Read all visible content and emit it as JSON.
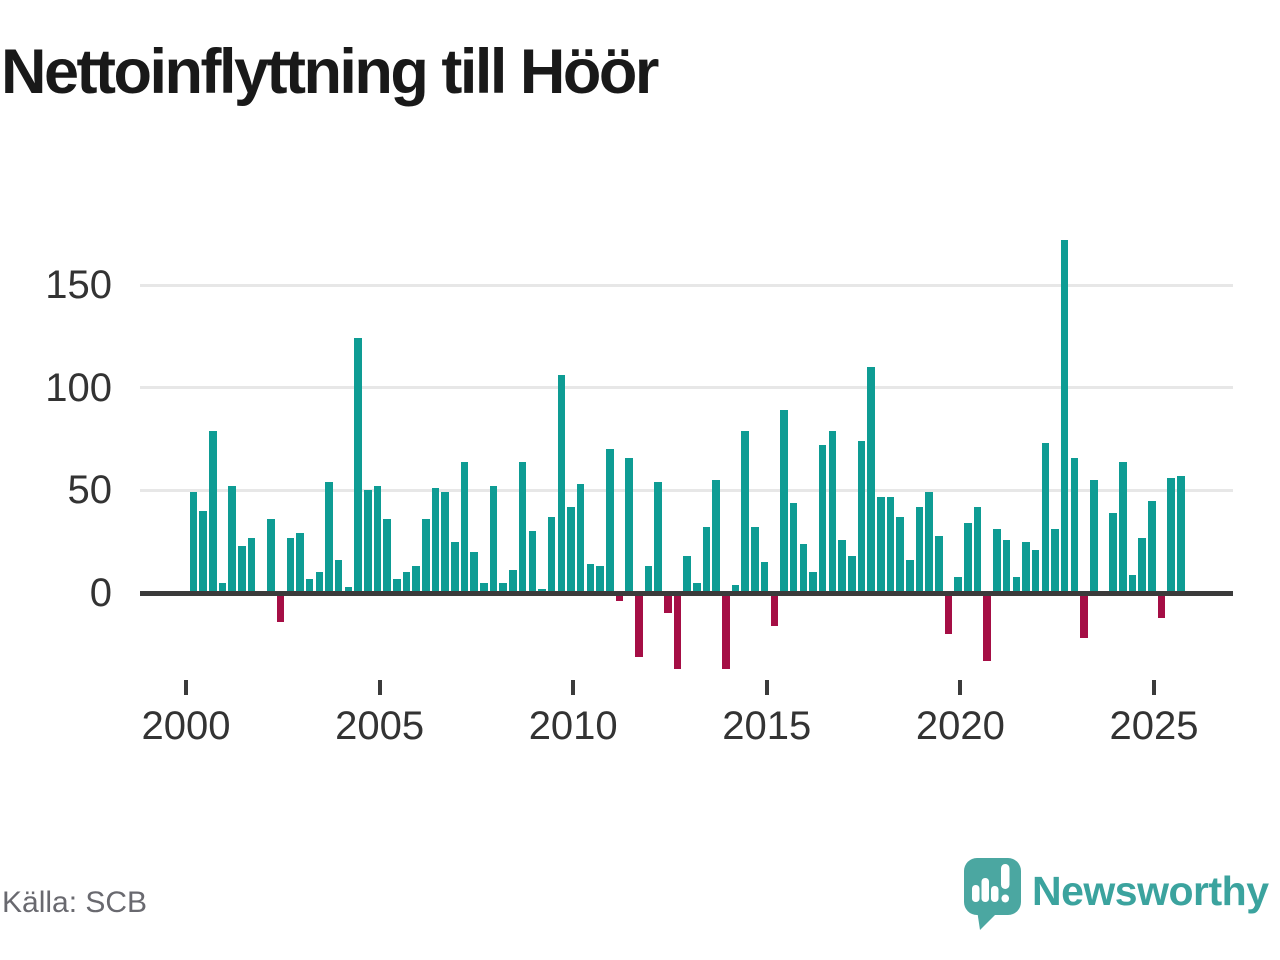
{
  "title": "Nettoinflyttning till Höör",
  "source": {
    "label": "Källa: SCB"
  },
  "branding": {
    "name": "Newsworthy",
    "icon": "newsworthy-speech-bubble-chart-icon",
    "text_color": "#3BA39E",
    "icon_color": "#4BA7A1"
  },
  "chart_data": {
    "type": "bar",
    "title": "Nettoinflyttning till Höör",
    "x_unit": "quarter",
    "period_start": "2000 Q1",
    "period_end": "2025 Q3",
    "x_tick_labels": [
      "2000",
      "2005",
      "2010",
      "2015",
      "2020",
      "2025"
    ],
    "y_ticks": [
      0,
      50,
      100,
      150
    ],
    "ylim": [
      -45,
      180
    ],
    "grid": "horizontal",
    "legend": "none",
    "positive_color": "#0E9C94",
    "negative_color": "#A50E45",
    "values": [
      49,
      40,
      79,
      5,
      52,
      23,
      27,
      0,
      36,
      -13,
      27,
      29,
      7,
      10,
      54,
      16,
      3,
      124,
      50,
      52,
      36,
      7,
      10,
      13,
      36,
      51,
      49,
      25,
      64,
      20,
      5,
      52,
      5,
      11,
      64,
      30,
      2,
      37,
      106,
      42,
      53,
      14,
      13,
      70,
      -3,
      66,
      -30,
      13,
      54,
      -9,
      -36,
      18,
      5,
      32,
      55,
      -36,
      4,
      79,
      32,
      15,
      -15,
      89,
      44,
      24,
      10,
      72,
      79,
      26,
      18,
      74,
      110,
      47,
      47,
      37,
      16,
      42,
      49,
      28,
      -19,
      8,
      34,
      42,
      -32,
      31,
      26,
      8,
      25,
      21,
      73,
      31,
      172,
      66,
      -21,
      55,
      0,
      39,
      64,
      9,
      27,
      45,
      -11,
      56,
      57
    ]
  }
}
